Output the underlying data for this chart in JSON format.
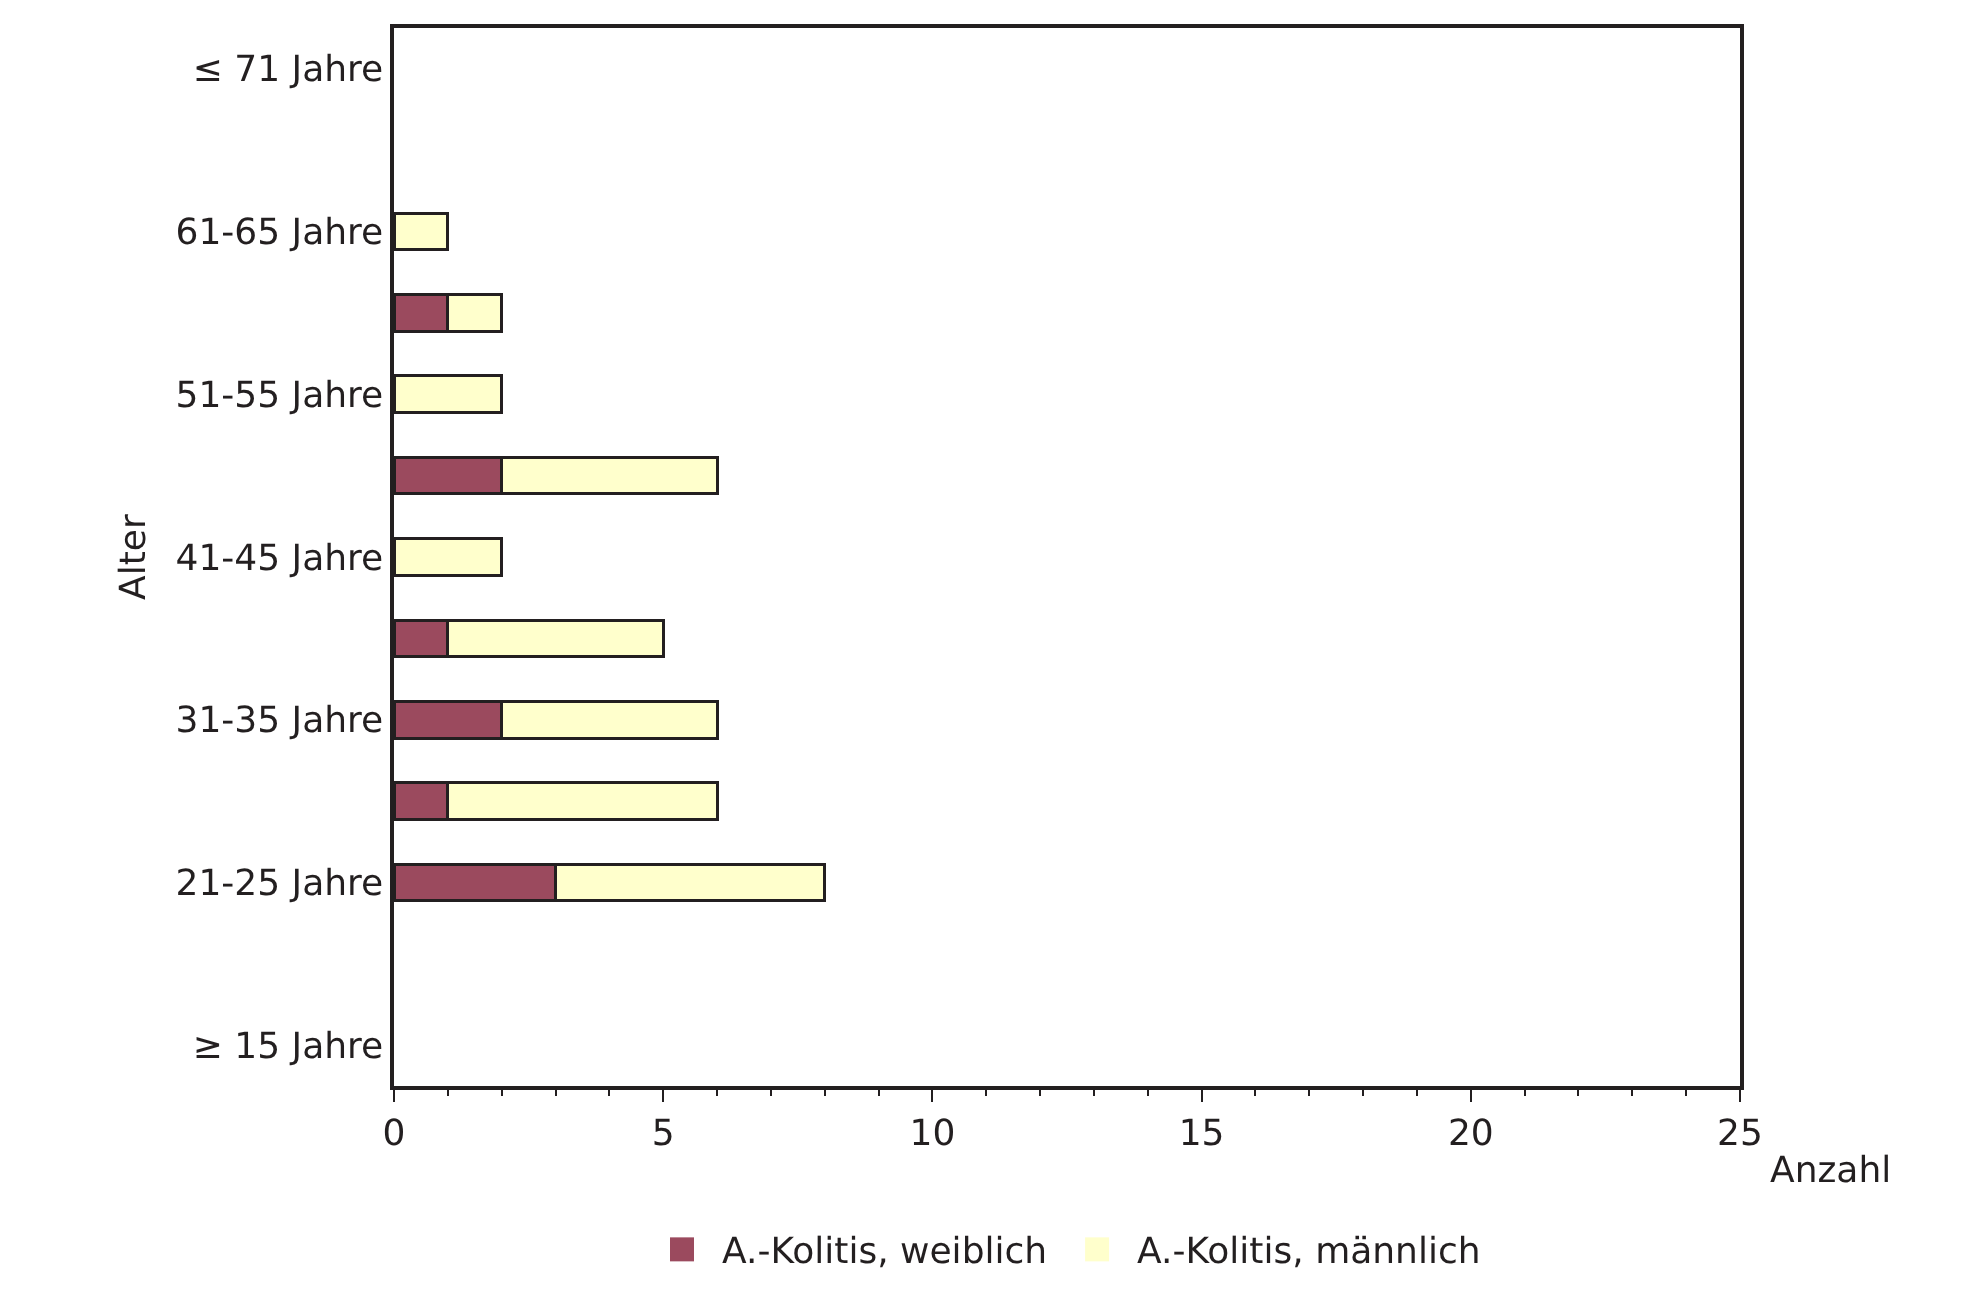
{
  "chart_data": {
    "type": "bar",
    "orientation": "horizontal",
    "stacked": true,
    "categories": [
      "≤ 71 Jahre",
      null,
      "61-65 Jahre",
      null,
      "51-55 Jahre",
      null,
      "41-45 Jahre",
      null,
      "31-35 Jahre",
      null,
      "21-25 Jahre",
      null,
      "≥ 15 Jahre"
    ],
    "series": [
      {
        "name": "A.-Kolitis, weiblich",
        "color": "#9b4a5e",
        "values": [
          0,
          0,
          0,
          1,
          0,
          2,
          0,
          1,
          2,
          1,
          3,
          0,
          0
        ]
      },
      {
        "name": "A.-Kolitis, männlich",
        "color": "#ffffcc",
        "values": [
          0,
          0,
          1,
          1,
          2,
          4,
          2,
          4,
          4,
          5,
          5,
          0,
          0
        ]
      }
    ],
    "xlim": [
      0,
      25
    ],
    "xticks": [
      0,
      5,
      10,
      15,
      20,
      25
    ],
    "xlabel": "Anzahl",
    "ylabel": "Alter",
    "legend": "bottom"
  }
}
